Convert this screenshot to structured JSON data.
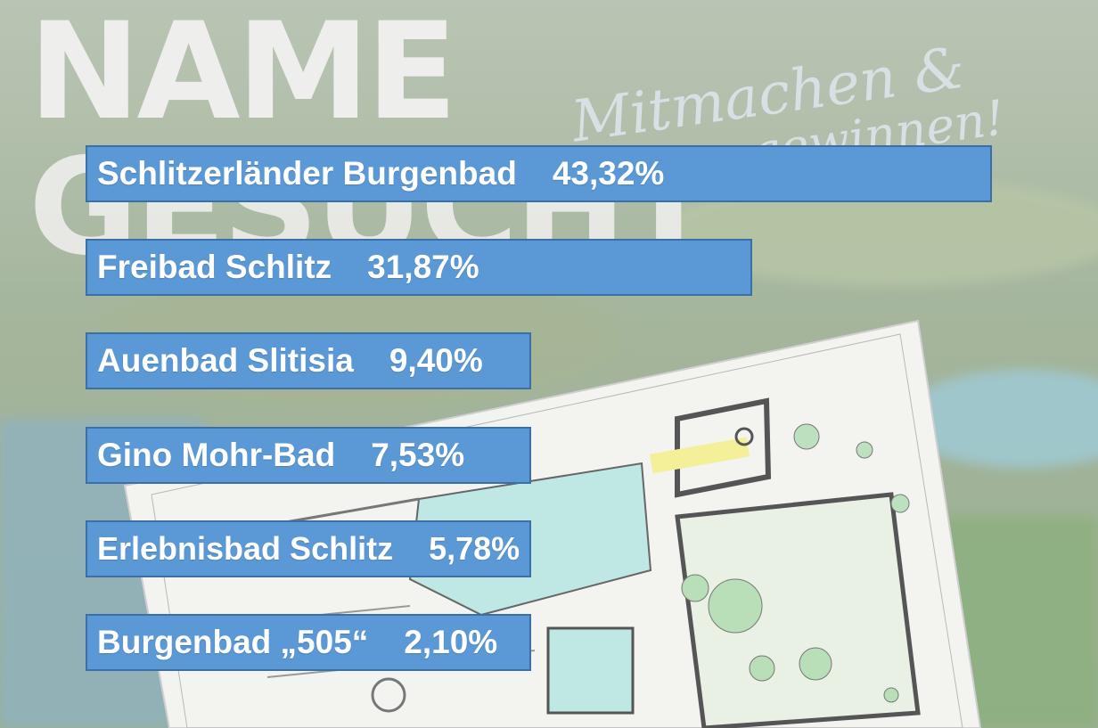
{
  "headline": {
    "line1": "NAME",
    "line2": "GESUCHT"
  },
  "script_text": {
    "line1": "Mitmachen &",
    "line2": "gewinnen!"
  },
  "chart_data": {
    "type": "bar",
    "orientation": "horizontal",
    "categories": [
      "Schlitzerländer Burgenbad",
      "Freibad Schlitz",
      "Auenbad Slitisia",
      "Gino Mohr-Bad",
      "Erlebnisbad Schlitz",
      "Burgenbad „505“"
    ],
    "values": [
      43.32,
      31.87,
      9.4,
      7.53,
      5.78,
      2.1
    ],
    "value_labels": [
      "43,32%",
      "31,87%",
      "9,40%",
      "7,53%",
      "5,78%",
      "2,10%"
    ],
    "unit": "%",
    "bar_color": "#5a98d6",
    "border_color": "#3c6fa6",
    "text_color": "#ffffff",
    "title": "",
    "xlabel": "",
    "ylabel": ""
  }
}
